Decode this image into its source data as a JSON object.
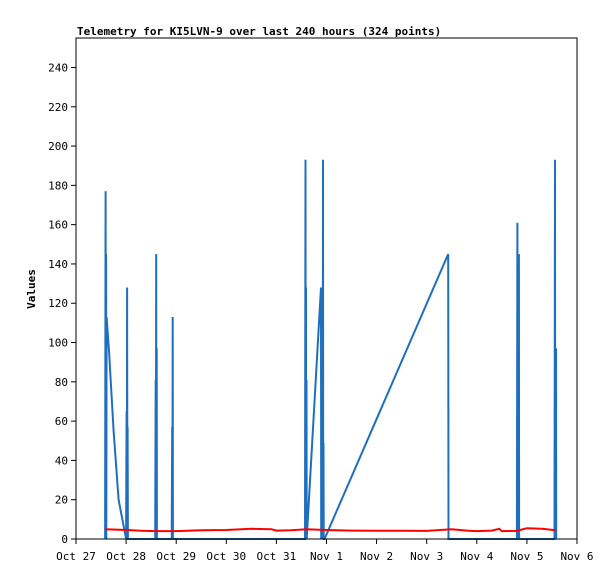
{
  "chart_data": {
    "type": "line",
    "title": "Telemetry for KI5LVN-9 over last 240 hours (324 points)",
    "xlabel": "",
    "ylabel": "Values",
    "xlim": [
      0,
      10
    ],
    "ylim": [
      0,
      255
    ],
    "x_ticks": [
      {
        "x": 0,
        "label": "Oct 27"
      },
      {
        "x": 1,
        "label": "Oct 28"
      },
      {
        "x": 2,
        "label": "Oct 29"
      },
      {
        "x": 3,
        "label": "Oct 30"
      },
      {
        "x": 4,
        "label": "Oct 31"
      },
      {
        "x": 5,
        "label": "Nov 1"
      },
      {
        "x": 6,
        "label": "Nov 2"
      },
      {
        "x": 7,
        "label": "Nov 3"
      },
      {
        "x": 8,
        "label": "Nov 4"
      },
      {
        "x": 9,
        "label": "Nov 5"
      },
      {
        "x": 10,
        "label": "Nov 6"
      }
    ],
    "y_ticks": [
      0,
      20,
      40,
      60,
      80,
      100,
      120,
      140,
      160,
      180,
      200,
      220,
      240
    ],
    "grid": false,
    "legend": "none",
    "x_unit": "days since Oct 27 00:00",
    "series": [
      {
        "color": "#1f6fbf",
        "points": [
          [
            0.58,
            0
          ],
          [
            0.59,
            177
          ],
          [
            0.595,
            0
          ],
          [
            0.6,
            145
          ],
          [
            0.605,
            0
          ],
          [
            0.61,
            113
          ],
          [
            0.66,
            95
          ],
          [
            0.75,
            55
          ],
          [
            0.85,
            20
          ],
          [
            1.0,
            0
          ],
          [
            1.01,
            65
          ],
          [
            1.015,
            0
          ],
          [
            1.02,
            128
          ],
          [
            1.025,
            0
          ],
          [
            1.03,
            57
          ],
          [
            1.035,
            0
          ],
          [
            1.58,
            0
          ],
          [
            1.59,
            81
          ],
          [
            1.595,
            0
          ],
          [
            1.6,
            145
          ],
          [
            1.605,
            0
          ],
          [
            1.61,
            97
          ],
          [
            1.615,
            0
          ],
          [
            1.91,
            0
          ],
          [
            1.92,
            57
          ],
          [
            1.925,
            0
          ],
          [
            1.93,
            113
          ],
          [
            1.935,
            0
          ],
          [
            4.57,
            0
          ],
          [
            4.58,
            193
          ],
          [
            4.585,
            0
          ],
          [
            4.59,
            128
          ],
          [
            4.595,
            0
          ],
          [
            4.6,
            81
          ],
          [
            4.605,
            0
          ],
          [
            4.89,
            128
          ],
          [
            4.895,
            0
          ],
          [
            4.92,
            97
          ],
          [
            4.925,
            0
          ],
          [
            4.93,
            193
          ],
          [
            4.935,
            0
          ],
          [
            4.94,
            49
          ],
          [
            4.945,
            0
          ],
          [
            4.96,
            0
          ],
          [
            7.43,
            145
          ],
          [
            7.435,
            0
          ],
          [
            8.8,
            0
          ],
          [
            8.81,
            161
          ],
          [
            8.815,
            0
          ],
          [
            8.84,
            145
          ],
          [
            8.845,
            0
          ],
          [
            9.55,
            0
          ],
          [
            9.56,
            193
          ],
          [
            9.565,
            0
          ],
          [
            9.58,
            97
          ],
          [
            9.585,
            0
          ]
        ]
      },
      {
        "color": "#ff0000",
        "points": [
          [
            0.58,
            5
          ],
          [
            0.8,
            4.8
          ],
          [
            1.0,
            4.6
          ],
          [
            1.3,
            4.2
          ],
          [
            1.6,
            4.0
          ],
          [
            2.0,
            4.0
          ],
          [
            2.5,
            4.5
          ],
          [
            3.0,
            4.6
          ],
          [
            3.5,
            5.2
          ],
          [
            3.9,
            5.0
          ],
          [
            4.0,
            4.3
          ],
          [
            4.3,
            4.5
          ],
          [
            4.6,
            5.0
          ],
          [
            5.0,
            4.6
          ],
          [
            5.5,
            4.3
          ],
          [
            6.0,
            4.2
          ],
          [
            6.5,
            4.2
          ],
          [
            7.0,
            4.1
          ],
          [
            7.5,
            5.0
          ],
          [
            7.8,
            4.3
          ],
          [
            8.0,
            4.0
          ],
          [
            8.3,
            4.3
          ],
          [
            8.45,
            5.2
          ],
          [
            8.5,
            4.0
          ],
          [
            8.8,
            4.1
          ],
          [
            9.0,
            5.5
          ],
          [
            9.3,
            5.2
          ],
          [
            9.58,
            4.5
          ]
        ]
      },
      {
        "color": "#000000",
        "points": [
          [
            0.58,
            0
          ],
          [
            9.58,
            0
          ]
        ]
      }
    ]
  }
}
